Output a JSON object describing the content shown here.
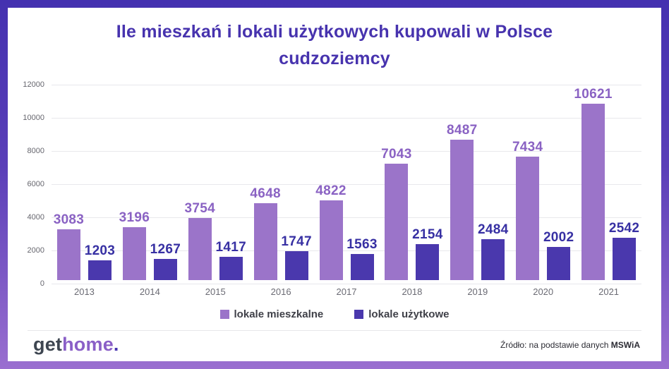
{
  "title": "Ile mieszkań i lokali użytkowych kupowali w Polsce cudzoziemcy",
  "chart_data": {
    "type": "bar",
    "categories": [
      "2013",
      "2014",
      "2015",
      "2016",
      "2017",
      "2018",
      "2019",
      "2020",
      "2021"
    ],
    "series": [
      {
        "name": "lokale mieszkalne",
        "values": [
          3083,
          3196,
          3754,
          4648,
          4822,
          7043,
          8487,
          7434,
          10621
        ],
        "bar_color": "#9b74c9",
        "label_color": "#8a62c3"
      },
      {
        "name": "lokale użytkowe",
        "values": [
          1203,
          1267,
          1417,
          1747,
          1563,
          2154,
          2484,
          2002,
          2542
        ],
        "bar_color": "#4a38ad",
        "label_color": "#3730a3"
      }
    ],
    "title": "Ile mieszkań i lokali użytkowych kupowali w Polsce cudzoziemcy",
    "xlabel": "",
    "ylabel": "",
    "ylim": [
      0,
      12000
    ],
    "ytick_step": 2000,
    "grid": true,
    "legend_position": "bottom"
  },
  "legend": {
    "items": [
      {
        "label": "lokale mieszkalne",
        "color": "#9b74c9"
      },
      {
        "label": "lokale użytkowe",
        "color": "#4a38ad"
      }
    ]
  },
  "footer": {
    "logo_get": "get",
    "logo_home": "home",
    "logo_dot": ".",
    "source_prefix": "Źródło: na podstawie danych ",
    "source_bold": "MSWiA"
  },
  "colors": {
    "title": "#4733ae",
    "frame_top": "#4431b0",
    "frame_bottom": "#9a6fd0",
    "gridline": "#e8e8ec",
    "axis_text": "#66666e",
    "legend_text": "#3f4048"
  }
}
